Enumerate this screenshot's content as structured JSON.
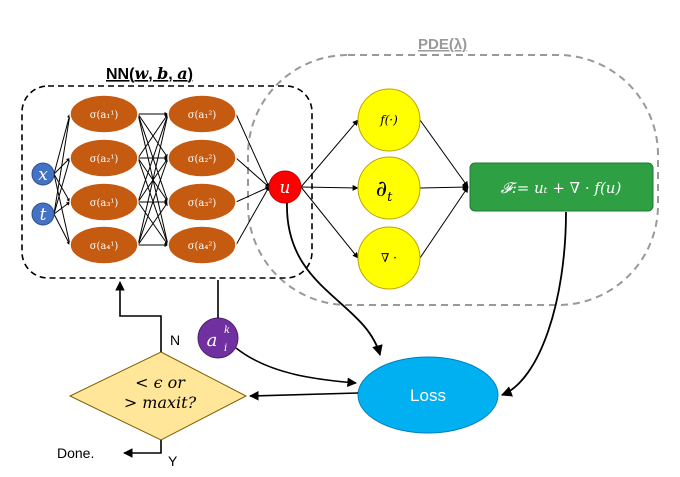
{
  "title_nn_prefix": "NN(",
  "title_nn_w": "w",
  "title_nn_b": "b",
  "title_nn_a": "a",
  "title_nn_sep": ", ",
  "title_nn_close": ")",
  "title_pde": "PDE(λ)",
  "inputs": [
    "x",
    "t"
  ],
  "layer1": [
    "σ(a₁¹)",
    "σ(a₂¹)",
    "σ(a₃¹)",
    "σ(a₄¹)"
  ],
  "layer2": [
    "σ(a₁²)",
    "σ(a₂²)",
    "σ(a₃²)",
    "σ(a₄²)"
  ],
  "output_node": "u",
  "pde_ops": {
    "f": "f(·)",
    "dt": "∂",
    "dt_sub": "t",
    "grad": "∇ ·"
  },
  "residual": "𝓕:= uₜ + ∇ · f(u)",
  "loss": "Loss",
  "param_node": {
    "base": "a",
    "sub": "i",
    "sup": "k"
  },
  "decision_line1": "< ϵ or",
  "decision_line2": "> maxit?",
  "label_no": "N",
  "label_yes": "Y",
  "done": "Done.",
  "colors": {
    "neuron": "#c55a11",
    "input": "#4472c4",
    "output": "#ff0000",
    "pde_op": "#ffff00",
    "residual": "#2ea043",
    "loss": "#00b0f0",
    "param": "#7030a0",
    "decision": "#ffe699"
  }
}
